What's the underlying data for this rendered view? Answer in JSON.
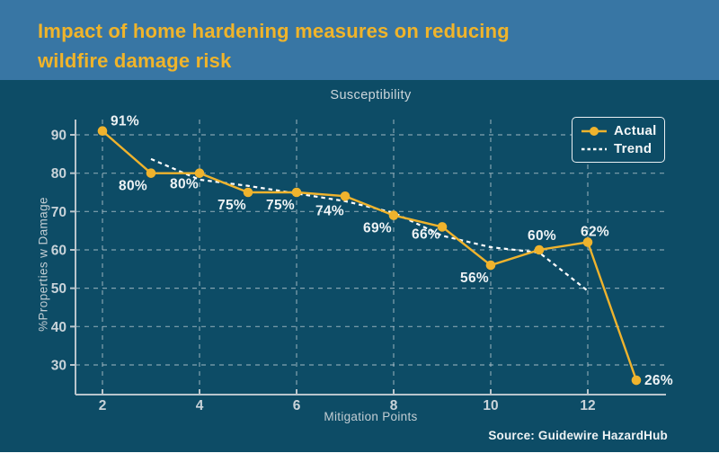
{
  "header": {
    "title_line1": "Impact of home hardening measures on reducing",
    "title_line2": "wildfire damage risk"
  },
  "source": "Source: Guidewire HazardHub",
  "colors": {
    "header_bg": "#3876a4",
    "chart_bg": "#0d4c66",
    "accent_gold": "#efb32d",
    "trend_white": "#ffffff",
    "grid": "#c2d0d8",
    "axis": "#b9c5cc",
    "tick_text": "#c9d3d9",
    "point_label_text": "#eef3f5",
    "title_gold": "#f0b42a"
  },
  "chart_data": {
    "type": "line",
    "title": "Susceptibility",
    "xlabel": "Mitigation Points",
    "ylabel": "%Properties w Damage",
    "xlim": [
      1.45,
      13.7
    ],
    "ylim": [
      22,
      94
    ],
    "x_major_ticks": [
      2,
      4,
      6,
      8,
      10,
      12
    ],
    "y_major_ticks": [
      30,
      40,
      50,
      60,
      70,
      80,
      90
    ],
    "grid": "dashed",
    "legend_position": "top-right",
    "series": [
      {
        "name": "Actual",
        "style": "solid-line-with-circle-markers",
        "color": "#efb32d",
        "x": [
          2,
          3,
          4,
          5,
          6,
          7,
          8,
          9,
          10,
          11,
          12,
          13
        ],
        "values": [
          91,
          80,
          80,
          75,
          75,
          74,
          69,
          66,
          56,
          60,
          62,
          26
        ],
        "point_labels": [
          "91%",
          "80%",
          "80%",
          "75%",
          "75%",
          "74%",
          "69%",
          "66%",
          "56%",
          "60%",
          "62%",
          "26%"
        ]
      },
      {
        "name": "Trend",
        "style": "dashed-line",
        "color": "#ffffff",
        "x": [
          3,
          4,
          5,
          6,
          7,
          8,
          9,
          10,
          11,
          12
        ],
        "values": [
          83.7,
          78.3,
          76.7,
          74.7,
          72.7,
          69.7,
          63.7,
          60.7,
          59.3,
          49.3
        ]
      }
    ]
  }
}
